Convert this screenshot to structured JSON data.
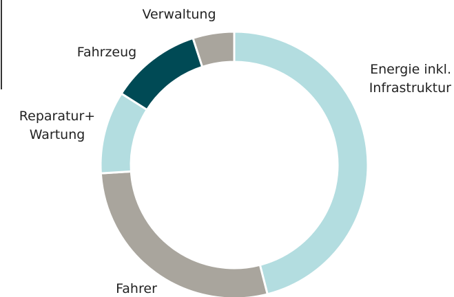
{
  "chart_data": {
    "type": "donut",
    "categories": [
      "Energie inkl.\nInfrastruktur",
      "Fahrer",
      "Reparatur+\nWartung",
      "Fahrzeug",
      "Verwaltung"
    ],
    "values": [
      46,
      28,
      10,
      11,
      5
    ],
    "colors": [
      "#b3dde0",
      "#a9a59d",
      "#b3dde0",
      "#004a55",
      "#a9a59d"
    ]
  }
}
